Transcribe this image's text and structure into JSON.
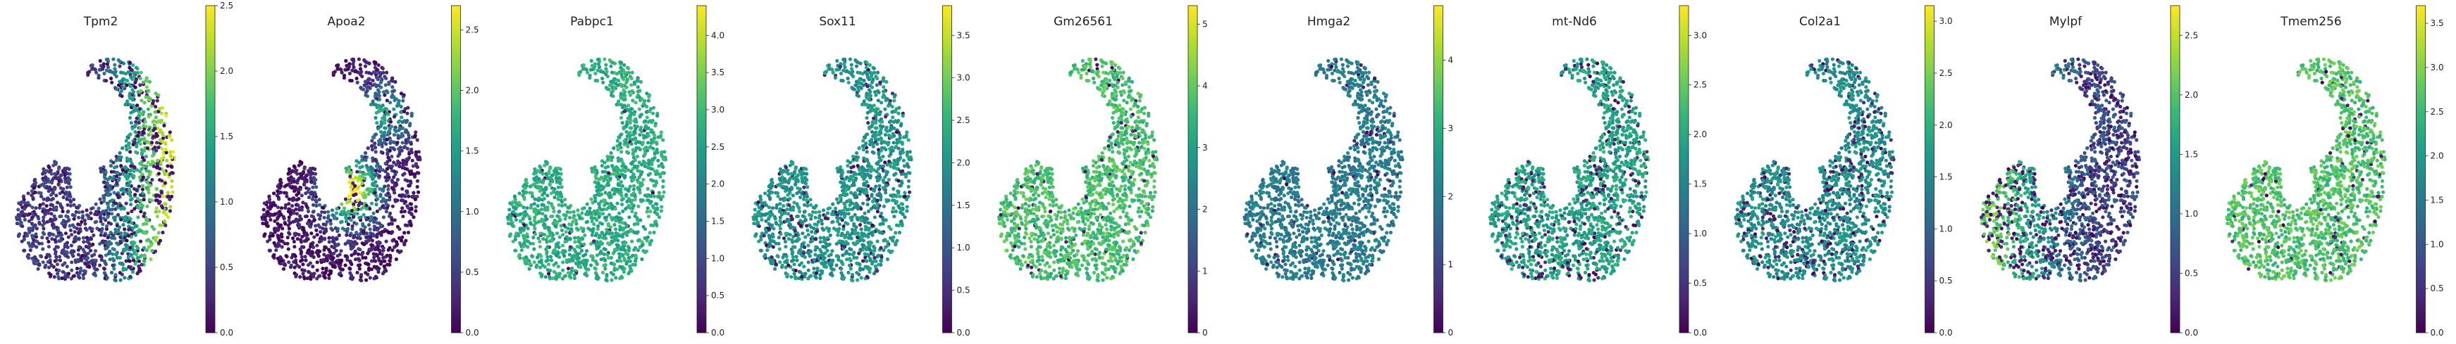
{
  "chart_data": [
    {
      "type": "scatter",
      "title": "Tpm2",
      "colorbar": {
        "range": [
          0,
          2.5
        ],
        "ticks": [
          "0.0",
          "0.5",
          "1.0",
          "1.5",
          "2.0",
          "2.5"
        ]
      },
      "cmap": "viridis",
      "pattern": "gradient-right",
      "base": 0.2,
      "high": 0.95,
      "spread": 0.9
    },
    {
      "type": "scatter",
      "title": "Apoa2",
      "colorbar": {
        "range": [
          0,
          2.7
        ],
        "ticks": [
          "0.0",
          "0.5",
          "1.0",
          "1.5",
          "2.0",
          "2.5"
        ]
      },
      "cmap": "viridis",
      "pattern": "hotspot",
      "base": 0.05,
      "high": 1.0,
      "spread": 0.5
    },
    {
      "type": "scatter",
      "title": "Pabpc1",
      "colorbar": {
        "range": [
          0,
          4.4
        ],
        "ticks": [
          "0.0",
          "0.5",
          "1.0",
          "1.5",
          "2.0",
          "2.5",
          "3.0",
          "3.5",
          "4.0"
        ]
      },
      "cmap": "viridis",
      "pattern": "uniform",
      "base": 0.62,
      "high": 0.65,
      "spread": 0.08
    },
    {
      "type": "scatter",
      "title": "Sox11",
      "colorbar": {
        "range": [
          0,
          3.85
        ],
        "ticks": [
          "0.0",
          "0.5",
          "1.0",
          "1.5",
          "2.0",
          "2.5",
          "3.0",
          "3.5"
        ]
      },
      "cmap": "viridis",
      "pattern": "uniform",
      "base": 0.52,
      "high": 0.55,
      "spread": 0.3
    },
    {
      "type": "scatter",
      "title": "Gm26561",
      "colorbar": {
        "range": [
          0,
          5.3
        ],
        "ticks": [
          "0",
          "1",
          "2",
          "3",
          "4",
          "5"
        ]
      },
      "cmap": "viridis",
      "pattern": "uniform",
      "base": 0.7,
      "high": 0.72,
      "spread": 0.12
    },
    {
      "type": "scatter",
      "title": "Hmga2",
      "colorbar": {
        "range": [
          0,
          4.8
        ],
        "ticks": [
          "0",
          "1",
          "2",
          "3",
          "4"
        ]
      },
      "cmap": "viridis",
      "pattern": "uniform",
      "base": 0.42,
      "high": 0.45,
      "spread": 0.12
    },
    {
      "type": "scatter",
      "title": "mt-Nd6",
      "colorbar": {
        "range": [
          0,
          3.3
        ],
        "ticks": [
          "0.0",
          "0.5",
          "1.0",
          "1.5",
          "2.0",
          "2.5",
          "3.0"
        ]
      },
      "cmap": "viridis",
      "pattern": "uniform",
      "base": 0.58,
      "high": 0.6,
      "spread": 0.45
    },
    {
      "type": "scatter",
      "title": "Col2a1",
      "colorbar": {
        "range": [
          0,
          3.15
        ],
        "ticks": [
          "0.0",
          "0.5",
          "1.0",
          "1.5",
          "2.0",
          "2.5",
          "3.0"
        ]
      },
      "cmap": "viridis",
      "pattern": "uniform",
      "base": 0.5,
      "high": 0.55,
      "spread": 0.45
    },
    {
      "type": "scatter",
      "title": "Mylpf",
      "colorbar": {
        "range": [
          0,
          2.75
        ],
        "ticks": [
          "0.0",
          "0.5",
          "1.0",
          "1.5",
          "2.0",
          "2.5"
        ]
      },
      "cmap": "viridis",
      "pattern": "gradient-left",
      "base": 0.25,
      "high": 0.9,
      "spread": 0.9
    },
    {
      "type": "scatter",
      "title": "Tmem256",
      "colorbar": {
        "range": [
          0,
          3.7
        ],
        "ticks": [
          "0.0",
          "0.5",
          "1.0",
          "1.5",
          "2.0",
          "2.5",
          "3.0",
          "3.5"
        ]
      },
      "cmap": "viridis",
      "pattern": "uniform",
      "base": 0.72,
      "high": 0.75,
      "spread": 0.15
    }
  ]
}
